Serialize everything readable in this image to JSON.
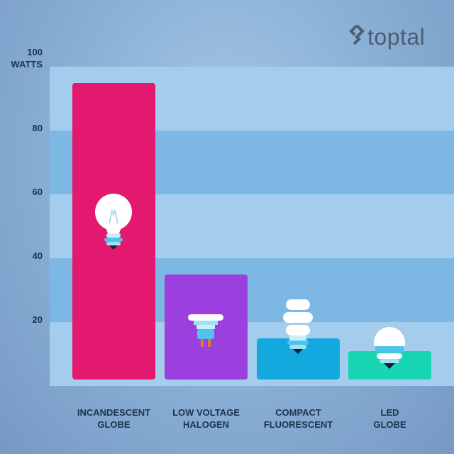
{
  "brand": {
    "logo_text": "toptal"
  },
  "colors": {
    "incandescent": "#e2196f",
    "halogen": "#9c3fdf",
    "compact": "#13a9df",
    "led": "#17d5b1",
    "band_dark": "#7db8e4",
    "band_light": "#a4ccec",
    "label": "#1b3550"
  },
  "chart_data": {
    "type": "bar",
    "title": "",
    "xlabel": "",
    "ylabel": "WATTS",
    "ylim": [
      0,
      100
    ],
    "yticks": [
      "20",
      "40",
      "60",
      "80",
      "100"
    ],
    "categories": [
      {
        "line1": "INCANDESCENT",
        "line2": "GLOBE",
        "icon": "incandescent-bulb-icon"
      },
      {
        "line1": "LOW VOLTAGE",
        "line2": "HALOGEN",
        "icon": "halogen-bulb-icon"
      },
      {
        "line1": "COMPACT",
        "line2": "FLUORESCENT",
        "icon": "compact-fluorescent-bulb-icon"
      },
      {
        "line1": "LED",
        "line2": "GLOBE",
        "icon": "led-bulb-icon"
      }
    ],
    "values": [
      95,
      35,
      15,
      11
    ]
  }
}
